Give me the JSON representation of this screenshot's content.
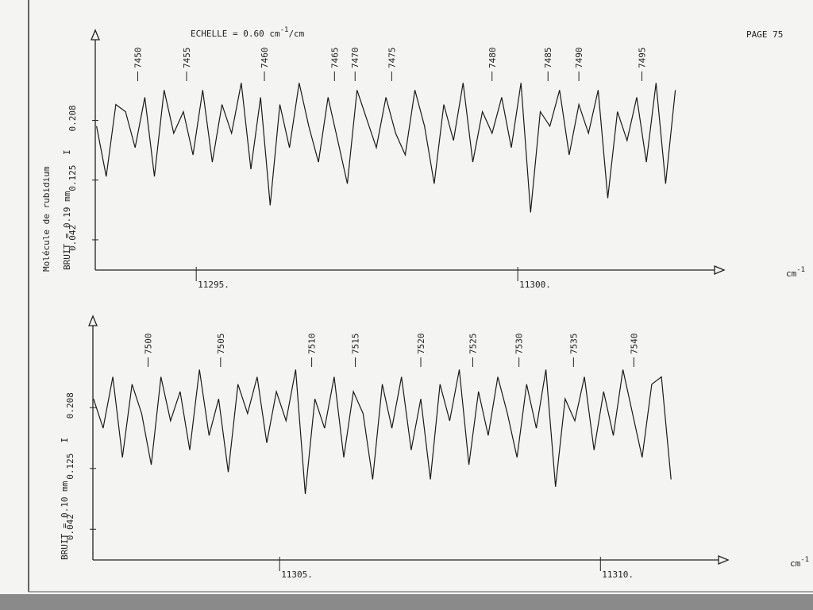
{
  "chart_data": [
    {
      "type": "line",
      "title": "ECHELLE = 0.60 cm",
      "title_exp": "-1",
      "title_end": "/cm",
      "page": "PAGE 75",
      "side_label": "Molécule de rubidium",
      "noise_label": "BRUIT = 0.19 mm",
      "y_symbol": "I",
      "x_unit": "cm",
      "x_unit_exp": "-1",
      "color": "#1a1a1a",
      "xlim": [
        11293.43,
        11303.06
      ],
      "ylim": [
        0,
        0.32
      ],
      "xticks": [
        {
          "value": 11295,
          "label": "11295."
        },
        {
          "value": 11300,
          "label": "11300."
        }
      ],
      "yticks": [
        0.042,
        0.125,
        0.208
      ],
      "x": [
        11293.45,
        11293.6,
        11293.75,
        11293.9,
        11294.05,
        11294.2,
        11294.35,
        11294.5,
        11294.65,
        11294.8,
        11294.95,
        11295.1,
        11295.25,
        11295.4,
        11295.55,
        11295.7,
        11295.85,
        11296.0,
        11296.15,
        11296.3,
        11296.45,
        11296.6,
        11296.75,
        11296.9,
        11297.05,
        11297.2,
        11297.35,
        11297.5,
        11297.65,
        11297.8,
        11297.95,
        11298.1,
        11298.25,
        11298.4,
        11298.55,
        11298.7,
        11298.85,
        11299.0,
        11299.15,
        11299.3,
        11299.45,
        11299.6,
        11299.75,
        11299.9,
        11300.05,
        11300.2,
        11300.35,
        11300.5,
        11300.65,
        11300.8,
        11300.95,
        11301.1,
        11301.25,
        11301.4,
        11301.55,
        11301.7,
        11301.85,
        11302.0,
        11302.15,
        11302.3,
        11302.45
      ],
      "values": [
        0.2,
        0.13,
        0.23,
        0.22,
        0.17,
        0.24,
        0.13,
        0.25,
        0.19,
        0.22,
        0.16,
        0.25,
        0.15,
        0.23,
        0.19,
        0.26,
        0.14,
        0.24,
        0.09,
        0.23,
        0.17,
        0.26,
        0.2,
        0.15,
        0.24,
        0.18,
        0.12,
        0.25,
        0.21,
        0.17,
        0.24,
        0.19,
        0.16,
        0.25,
        0.2,
        0.12,
        0.23,
        0.18,
        0.26,
        0.15,
        0.22,
        0.19,
        0.24,
        0.17,
        0.26,
        0.08,
        0.22,
        0.2,
        0.25,
        0.16,
        0.23,
        0.19,
        0.25,
        0.1,
        0.22,
        0.18,
        0.24,
        0.15,
        0.26,
        0.12,
        0.25
      ],
      "line_ids": [
        7450,
        7455,
        7460,
        7465,
        7470,
        7475,
        7480,
        7485,
        7490,
        7495
      ],
      "line_x": [
        11294.09,
        11294.85,
        11296.06,
        11297.15,
        11297.47,
        11298.04,
        11299.6,
        11300.47,
        11300.95,
        11301.93
      ]
    },
    {
      "type": "line",
      "noise_label": "BRUIT = 0.10 mm",
      "y_symbol": "I",
      "x_unit": "cm",
      "x_unit_exp": "-1",
      "color": "#1a1a1a",
      "xlim": [
        11302.09,
        11311.84
      ],
      "ylim": [
        0,
        0.32
      ],
      "xticks": [
        {
          "value": 11305,
          "label": "11305."
        },
        {
          "value": 11310,
          "label": "11310."
        }
      ],
      "yticks": [
        0.042,
        0.125,
        0.208
      ],
      "x": [
        11302.1,
        11302.25,
        11302.4,
        11302.55,
        11302.7,
        11302.85,
        11303.0,
        11303.15,
        11303.3,
        11303.45,
        11303.6,
        11303.75,
        11303.9,
        11304.05,
        11304.2,
        11304.35,
        11304.5,
        11304.65,
        11304.8,
        11304.95,
        11305.1,
        11305.25,
        11305.4,
        11305.55,
        11305.7,
        11305.85,
        11306.0,
        11306.15,
        11306.3,
        11306.45,
        11306.6,
        11306.75,
        11306.9,
        11307.05,
        11307.2,
        11307.35,
        11307.5,
        11307.65,
        11307.8,
        11307.95,
        11308.1,
        11308.25,
        11308.4,
        11308.55,
        11308.7,
        11308.85,
        11309.0,
        11309.15,
        11309.3,
        11309.45,
        11309.6,
        11309.75,
        11309.9,
        11310.05,
        11310.2,
        11310.35,
        11310.5,
        11310.65,
        11310.8,
        11310.95,
        11311.1
      ],
      "values": [
        0.22,
        0.18,
        0.25,
        0.14,
        0.24,
        0.2,
        0.13,
        0.25,
        0.19,
        0.23,
        0.15,
        0.26,
        0.17,
        0.22,
        0.12,
        0.24,
        0.2,
        0.25,
        0.16,
        0.23,
        0.19,
        0.26,
        0.09,
        0.22,
        0.18,
        0.25,
        0.14,
        0.23,
        0.2,
        0.11,
        0.24,
        0.18,
        0.25,
        0.15,
        0.22,
        0.11,
        0.24,
        0.19,
        0.26,
        0.13,
        0.23,
        0.17,
        0.25,
        0.2,
        0.14,
        0.24,
        0.18,
        0.26,
        0.1,
        0.22,
        0.19,
        0.25,
        0.15,
        0.23,
        0.17,
        0.26,
        0.2,
        0.14,
        0.24,
        0.25,
        0.11
      ],
      "line_ids": [
        7500,
        7505,
        7510,
        7515,
        7520,
        7525,
        7530,
        7535,
        7540
      ],
      "line_x": [
        11302.95,
        11304.08,
        11305.5,
        11306.18,
        11307.2,
        11308.01,
        11308.73,
        11309.58,
        11310.52
      ]
    }
  ]
}
